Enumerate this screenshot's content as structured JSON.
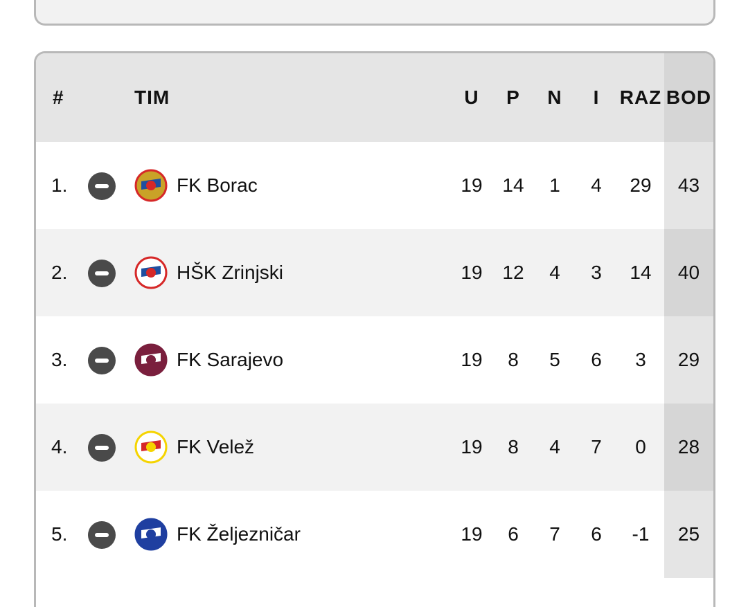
{
  "headers": {
    "rank": "#",
    "team": "TIM",
    "u": "U",
    "p": "P",
    "n": "N",
    "i": "I",
    "raz": "RAZ",
    "bod": "BOD"
  },
  "rows": [
    {
      "rank": "1.",
      "status": "minus-circle-icon",
      "team": "FK Borac",
      "u": "19",
      "p": "14",
      "n": "1",
      "i": "4",
      "raz": "29",
      "bod": "43",
      "logo_colors": [
        "#d62828",
        "#1f4fa0",
        "#c9a227"
      ]
    },
    {
      "rank": "2.",
      "status": "minus-circle-icon",
      "team": "HŠK Zrinjski",
      "u": "19",
      "p": "12",
      "n": "4",
      "i": "3",
      "raz": "14",
      "bod": "40",
      "logo_colors": [
        "#d62828",
        "#1f4fa0",
        "#ffffff"
      ]
    },
    {
      "rank": "3.",
      "status": "minus-circle-icon",
      "team": "FK Sarajevo",
      "u": "19",
      "p": "8",
      "n": "5",
      "i": "6",
      "raz": "3",
      "bod": "29",
      "logo_colors": [
        "#7a1f3d",
        "#ffffff",
        "#7a1f3d"
      ]
    },
    {
      "rank": "4.",
      "status": "minus-circle-icon",
      "team": "FK Velež",
      "u": "19",
      "p": "8",
      "n": "4",
      "i": "7",
      "raz": "0",
      "bod": "28",
      "logo_colors": [
        "#f5d400",
        "#d62828",
        "#ffffff"
      ]
    },
    {
      "rank": "5.",
      "status": "minus-circle-icon",
      "team": "FK Željezničar",
      "u": "19",
      "p": "6",
      "n": "7",
      "i": "6",
      "raz": "-1",
      "bod": "25",
      "logo_colors": [
        "#1f3fa0",
        "#ffffff",
        "#1f3fa0"
      ]
    }
  ]
}
